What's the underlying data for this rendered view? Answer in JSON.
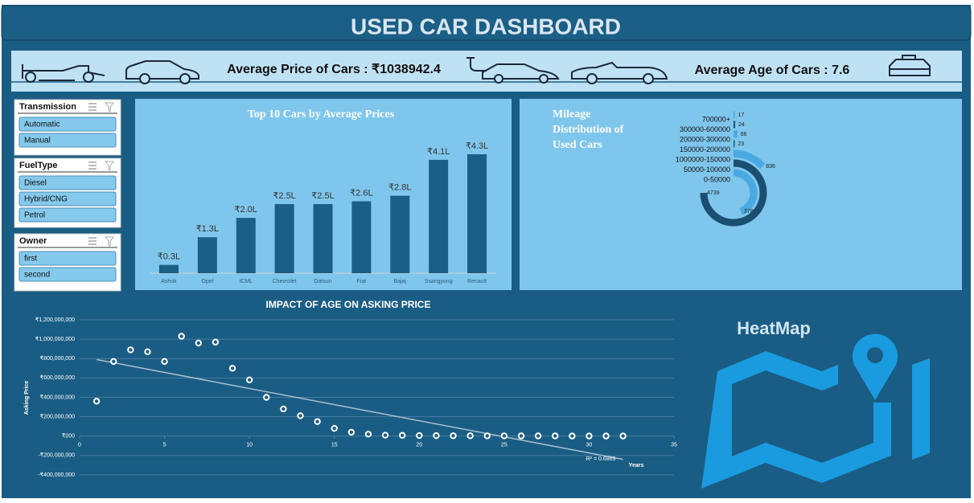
{
  "header": {
    "title": "USED CAR DASHBOARD"
  },
  "kpis": [
    {
      "label": "Average Price of Cars : ₹1038942.4"
    },
    {
      "label": "Average Age of Cars : 7.6"
    }
  ],
  "slicers": [
    {
      "title": "Transmission",
      "items": [
        "Automatic",
        "Manual"
      ]
    },
    {
      "title": "FuelType",
      "items": [
        "Diesel",
        "Hybrid/CNG",
        "Petrol"
      ]
    },
    {
      "title": "Owner",
      "items": [
        "first",
        "second"
      ]
    }
  ],
  "chart_data": [
    {
      "type": "bar",
      "title": "Top 10 Cars by Average Prices",
      "categories": [
        "Ashok",
        "Opel",
        "ICML",
        "Chevrolet",
        "Datsun",
        "Fiat",
        "Bajaj",
        "Ssangyong",
        "Renault"
      ],
      "values": [
        0.3,
        1.3,
        2.0,
        2.5,
        2.5,
        2.6,
        2.8,
        4.1,
        4.3
      ],
      "value_labels": [
        "₹0.3L",
        "₹1.3L",
        "₹2.0L",
        "₹2.5L",
        "₹2.5L",
        "₹2.6L",
        "₹2.8L",
        "₹4.1L",
        "₹4.3L"
      ],
      "color": "#1b5e86"
    },
    {
      "type": "radial",
      "title": "Mileage Distribution of Used Cars",
      "categories": [
        "0-50000",
        "50000-100000",
        "1000000-150000",
        "150000-200000",
        "200000-300000",
        "300000-600000",
        "700000+"
      ],
      "values": [
        2788,
        4739,
        836,
        23,
        66,
        24,
        17
      ],
      "colors": [
        "#4aa9e0",
        "#1b4f72",
        "#4aa9e0",
        "#1b4f72",
        "#4aa9e0",
        "#1b4f72",
        "#4aa9e0"
      ]
    },
    {
      "type": "scatter",
      "title": "IMPACT OF AGE ON ASKING PRICE",
      "x_label": "Years",
      "y_label": "Asking Price",
      "x": [
        1,
        2,
        3,
        4,
        5,
        6,
        7,
        8,
        9,
        10,
        11,
        12,
        13,
        14,
        15,
        16,
        17,
        18,
        19,
        20,
        21,
        22,
        23,
        24,
        25,
        26,
        27,
        28,
        29,
        30,
        31,
        32
      ],
      "values": [
        360000000,
        770000000,
        890000000,
        870000000,
        770000000,
        1030000000,
        960000000,
        970000000,
        700000000,
        580000000,
        400000000,
        280000000,
        210000000,
        150000000,
        80000000,
        40000000,
        20000000,
        10000000,
        8000000,
        6000000,
        5000000,
        4000000,
        4000000,
        3000000,
        3000000,
        2000000,
        2000000,
        2000000,
        1000000,
        1000000,
        1000000,
        1000000
      ],
      "color": "#ffffff",
      "trendline": {
        "x": [
          1,
          32
        ],
        "values": [
          790000000,
          -240000000
        ],
        "label": "R² = 0.6869"
      },
      "xlim": [
        0,
        35
      ],
      "xticks": [
        0,
        5,
        10,
        15,
        20,
        25,
        30,
        35
      ],
      "ylim": [
        -400000000,
        1200000000
      ],
      "yticks": [
        {
          "value": -400000000,
          "label": "-₹400,000,000"
        },
        {
          "value": -200000000,
          "label": "-₹200,000,000"
        },
        {
          "value": 0,
          "label": "₹000"
        },
        {
          "value": 200000000,
          "label": "₹200,000,000"
        },
        {
          "value": 400000000,
          "label": "₹400,000,000"
        },
        {
          "value": 600000000,
          "label": "₹600,000,000"
        },
        {
          "value": 800000000,
          "label": "₹800,000,000"
        },
        {
          "value": 1000000000,
          "label": "₹1,000,000,000"
        },
        {
          "value": 1200000000,
          "label": "₹1,200,000,000"
        }
      ],
      "grid": true
    }
  ],
  "heatmap": {
    "label": "HeatMap"
  }
}
